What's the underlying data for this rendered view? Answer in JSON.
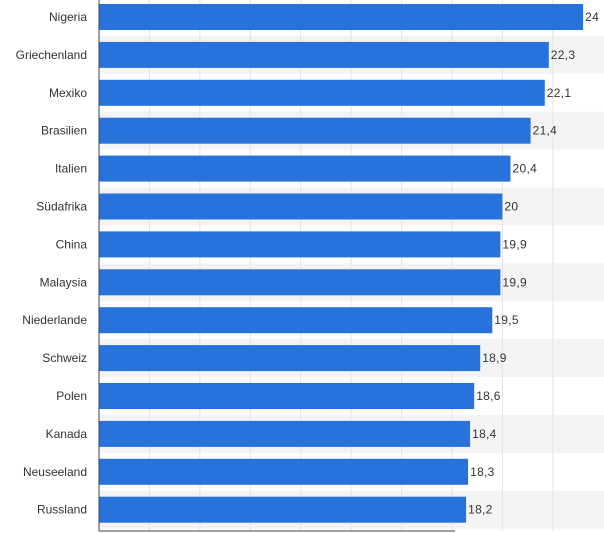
{
  "chart_data": {
    "type": "bar",
    "orientation": "horizontal",
    "title": "",
    "xlabel": "",
    "ylabel": "",
    "xlim": [
      0,
      24
    ],
    "grid": true,
    "categories": [
      "Nigeria",
      "Griechenland",
      "Mexiko",
      "Brasilien",
      "Italien",
      "Südafrika",
      "China",
      "Malaysia",
      "Niederlande",
      "Schweiz",
      "Polen",
      "Kanada",
      "Neuseeland",
      "Russland"
    ],
    "values": [
      24,
      22.3,
      22.1,
      21.4,
      20.4,
      20,
      19.9,
      19.9,
      19.5,
      18.9,
      18.6,
      18.4,
      18.3,
      18.2
    ],
    "value_labels": [
      "24",
      "22,3",
      "22,1",
      "21,4",
      "20,4",
      "20",
      "19,9",
      "19,9",
      "19,5",
      "18,9",
      "18,6",
      "18,4",
      "18,3",
      "18,2"
    ],
    "bar_color": "#2872dc",
    "stripe_color": "#f4f4f4",
    "grid_color": "#e4e4e4",
    "axis_color": "#444444"
  }
}
